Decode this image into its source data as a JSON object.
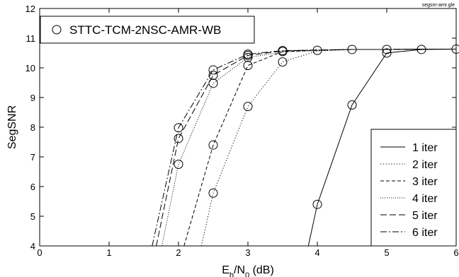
{
  "chart_data": {
    "type": "line",
    "corner_note": "segsnr-amr.gle",
    "xlabel_main": "E",
    "xlabel_sub1": "b",
    "xlabel_mid": "/N",
    "xlabel_sub2": "0",
    "xlabel_unit": " (dB)",
    "ylabel": "SegSNR",
    "xlim": [
      0,
      6
    ],
    "ylim": [
      4,
      12
    ],
    "xticks": [
      "0",
      "1",
      "2",
      "3",
      "4",
      "5",
      "6"
    ],
    "yticks": [
      "4",
      "5",
      "6",
      "7",
      "8",
      "9",
      "10",
      "11",
      "12"
    ],
    "grid": false,
    "marker_legend": "STTC-TCM-2NSC-AMR-WB",
    "legend_position": "bottom-right",
    "series": [
      {
        "name": "1 iter",
        "style": "solid",
        "x": [
          3.87,
          4.0,
          4.5,
          5.0,
          5.5,
          6.0
        ],
        "y": [
          4.0,
          5.4,
          8.75,
          10.5,
          10.62,
          10.63
        ]
      },
      {
        "name": "2 iter",
        "style": "dotted",
        "x": [
          2.33,
          2.5,
          3.0,
          3.5,
          4.0,
          4.5,
          5.0,
          5.5,
          6.0
        ],
        "y": [
          4.0,
          5.78,
          8.7,
          10.2,
          10.57,
          10.62,
          10.62,
          10.63,
          10.63
        ]
      },
      {
        "name": "3 iter",
        "style": "dashed-short",
        "x": [
          2.08,
          2.5,
          3.0,
          3.5,
          4.0,
          4.5,
          5.0,
          5.5,
          6.0
        ],
        "y": [
          4.0,
          7.4,
          10.08,
          10.55,
          10.59,
          10.62,
          10.62,
          10.63,
          10.63
        ]
      },
      {
        "name": "4 iter",
        "style": "dotted-fine",
        "x": [
          1.76,
          2.0,
          2.5,
          3.0,
          3.5,
          4.0,
          4.5,
          5.0,
          5.5,
          6.0
        ],
        "y": [
          4.0,
          6.75,
          9.48,
          10.35,
          10.53,
          10.58,
          10.62,
          10.62,
          10.63,
          10.63
        ]
      },
      {
        "name": "5 iter",
        "style": "dashed-long",
        "x": [
          1.68,
          2.0,
          2.5,
          3.0,
          3.5,
          4.0,
          4.5,
          5.0,
          5.5,
          6.0
        ],
        "y": [
          4.0,
          7.62,
          9.75,
          10.42,
          10.57,
          10.6,
          10.62,
          10.62,
          10.63,
          10.63
        ]
      },
      {
        "name": "6 iter",
        "style": "dashdot",
        "x": [
          1.62,
          2.0,
          2.5,
          3.0,
          3.5,
          4.0,
          4.5,
          5.0,
          5.5,
          6.0
        ],
        "y": [
          4.0,
          7.98,
          9.93,
          10.46,
          10.58,
          10.6,
          10.62,
          10.62,
          10.63,
          10.63
        ]
      }
    ],
    "markers": [
      {
        "x": 2.0,
        "y": 7.98
      },
      {
        "x": 2.0,
        "y": 7.62
      },
      {
        "x": 2.0,
        "y": 6.75
      },
      {
        "x": 2.5,
        "y": 9.93
      },
      {
        "x": 2.5,
        "y": 9.75
      },
      {
        "x": 2.5,
        "y": 9.48
      },
      {
        "x": 2.5,
        "y": 7.4
      },
      {
        "x": 2.5,
        "y": 5.78
      },
      {
        "x": 3.0,
        "y": 10.46
      },
      {
        "x": 3.0,
        "y": 10.42
      },
      {
        "x": 3.0,
        "y": 10.35
      },
      {
        "x": 3.0,
        "y": 10.08
      },
      {
        "x": 3.0,
        "y": 8.7
      },
      {
        "x": 3.5,
        "y": 10.58
      },
      {
        "x": 3.5,
        "y": 10.55
      },
      {
        "x": 3.5,
        "y": 10.2
      },
      {
        "x": 4.0,
        "y": 10.59
      },
      {
        "x": 4.0,
        "y": 5.4
      },
      {
        "x": 4.5,
        "y": 10.62
      },
      {
        "x": 4.5,
        "y": 8.75
      },
      {
        "x": 5.0,
        "y": 10.62
      },
      {
        "x": 5.0,
        "y": 10.5
      },
      {
        "x": 5.5,
        "y": 10.62
      },
      {
        "x": 6.0,
        "y": 10.63
      }
    ]
  }
}
